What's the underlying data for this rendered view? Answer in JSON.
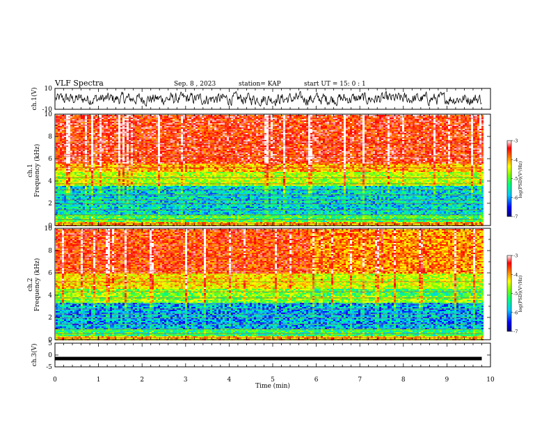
{
  "header": {
    "title": "VLF Spectra",
    "date": "Sep. 8  , 2023",
    "station": "station= KAP",
    "start": "start  UT =   15: 0  : 1"
  },
  "colors": {
    "spectrogram_scale": [
      "#000080",
      "#0000ff",
      "#00c8ff",
      "#00ff80",
      "#80ff00",
      "#ffff00",
      "#ff8000",
      "#ff0000",
      "#ffffff"
    ],
    "trace": "#000000"
  },
  "chart_data": [
    {
      "type": "line",
      "name": "ch1-waveform",
      "ylabel": "ch.1(V)",
      "ylim": [
        -10,
        10
      ],
      "yticks": [
        "10",
        "-10"
      ],
      "xlim": [
        0,
        10
      ],
      "description_values": "noisy signal between about -6 and +6 V for 0 to 9.8 min"
    },
    {
      "type": "heatmap",
      "name": "ch1-spectrogram",
      "ylabel": "Frequency (kHz)",
      "channel_label": "ch.1",
      "ylim": [
        0,
        10
      ],
      "yticks": [
        "0",
        "2",
        "4",
        "6",
        "8",
        "10"
      ],
      "xlim": [
        0,
        10
      ],
      "data_end_min": 9.8,
      "colorbar": {
        "label": "log(PSD)(V²/Hz)",
        "range": [
          -7,
          -3
        ],
        "ticks": [
          "-3",
          "-4",
          "-5",
          "-6",
          "-7"
        ]
      },
      "bands_kHz": [
        {
          "from": 0,
          "to": 0.4,
          "level": -4.2
        },
        {
          "from": 0.4,
          "to": 1.0,
          "level": -5.3
        },
        {
          "from": 1.0,
          "to": 3.6,
          "level": -5.8
        },
        {
          "from": 3.6,
          "to": 4.9,
          "level": -4.8
        },
        {
          "from": 4.9,
          "to": 5.6,
          "level": -4.2
        },
        {
          "from": 5.6,
          "to": 10,
          "level": -3.6
        }
      ]
    },
    {
      "type": "heatmap",
      "name": "ch2-spectrogram",
      "ylabel": "Frequency (kHz)",
      "channel_label": "ch.2",
      "ylim": [
        0,
        10
      ],
      "yticks": [
        "0",
        "2",
        "4",
        "6",
        "8",
        "10"
      ],
      "xlim": [
        0,
        10
      ],
      "data_end_min": 9.8,
      "transition_min": 5.85,
      "colorbar": {
        "label": "log(PSD)(V²/Hz)",
        "range": [
          -7,
          -3
        ],
        "ticks": [
          "-3",
          "-4",
          "-5",
          "-6",
          "-7"
        ]
      },
      "bands_kHz": [
        {
          "from": 0,
          "to": 0.4,
          "level": -4.3
        },
        {
          "from": 0.4,
          "to": 1.0,
          "level": -5.4
        },
        {
          "from": 1.0,
          "to": 3.4,
          "level": -6.0
        },
        {
          "from": 3.4,
          "to": 4.6,
          "level": -5.0
        },
        {
          "from": 4.6,
          "to": 6.0,
          "level": -4.4
        },
        {
          "from": 6.0,
          "to": 10,
          "level": -3.7
        }
      ]
    },
    {
      "type": "line",
      "name": "ch3-trace",
      "ylabel": "ch.3(V)",
      "ylim": [
        -5,
        5
      ],
      "yticks": [
        "5",
        "0",
        "-5"
      ],
      "xlim": [
        0,
        10
      ],
      "value": -1.5
    }
  ],
  "xaxis": {
    "label": "Time  (min)",
    "ticks": [
      "0",
      "1",
      "2",
      "3",
      "4",
      "5",
      "6",
      "7",
      "8",
      "9",
      "10"
    ]
  }
}
